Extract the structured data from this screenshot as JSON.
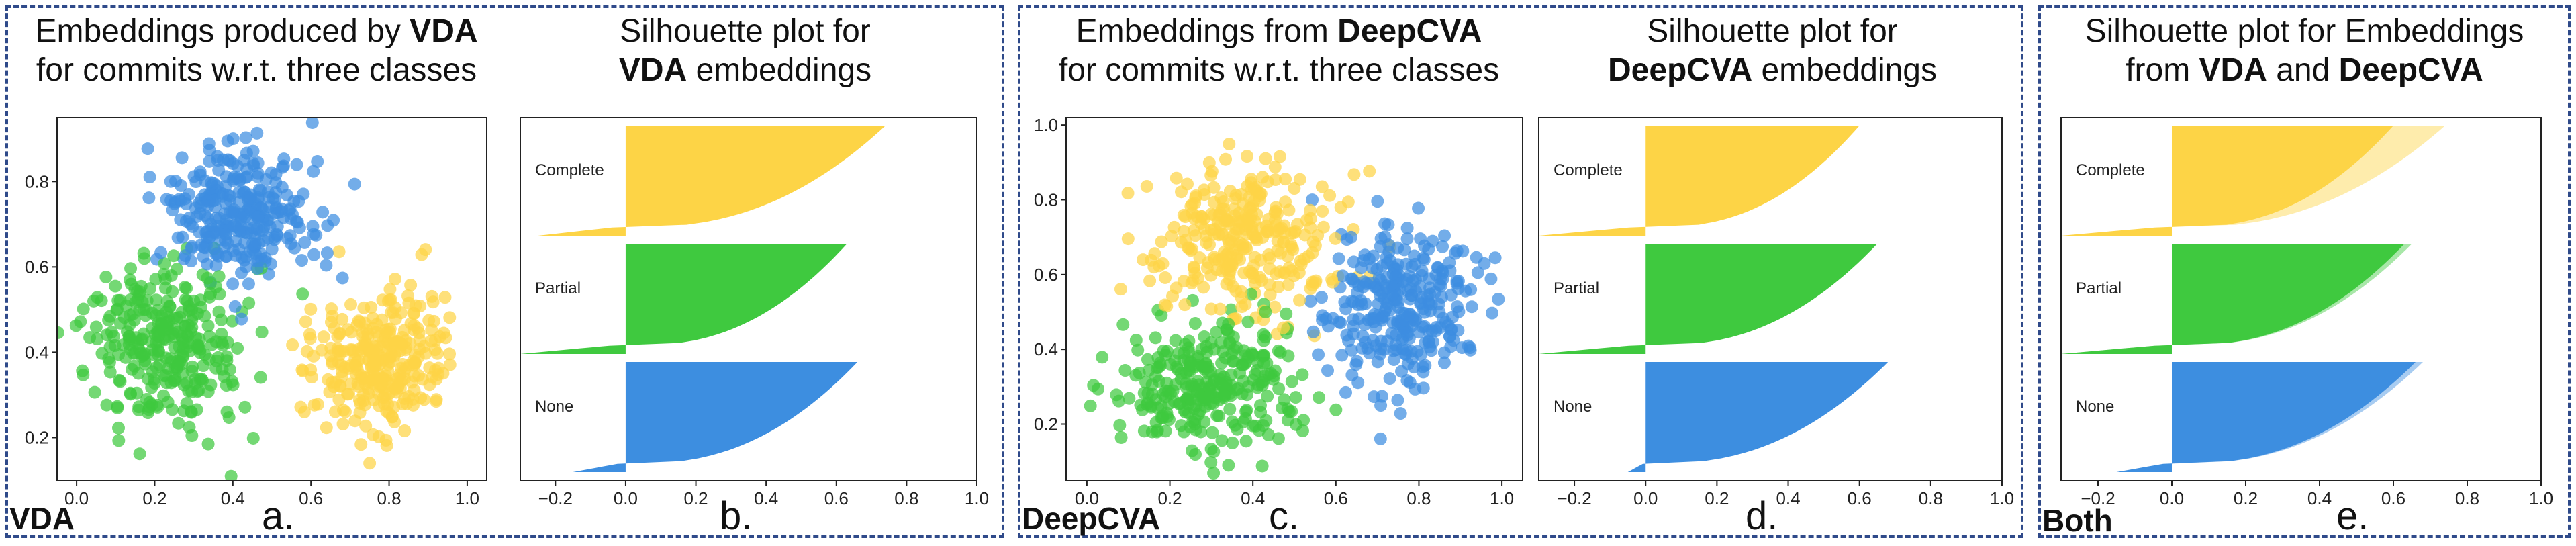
{
  "panels": {
    "vda": {
      "title_line1_pre": "Embeddings produced by ",
      "title_line1_bold": "VDA",
      "title_line2": "for commits w.r.t. three classes",
      "sil_title_line1": "Silhouette plot for",
      "sil_title_bold": "VDA",
      "sil_title_post": " embeddings",
      "tag": "VDA",
      "letter_scatter": "a.",
      "letter_sil": "b."
    },
    "deepcva": {
      "title_line1_pre": "Embeddings from ",
      "title_line1_bold": "DeepCVA",
      "title_line2": "for commits w.r.t. three classes",
      "sil_title_line1": "Silhouette plot for",
      "sil_title_bold": "DeepCVA",
      "sil_title_post": " embeddings",
      "tag": "DeepCVA",
      "letter_scatter": "c.",
      "letter_sil": "d."
    },
    "both": {
      "sil_title_line1": "Silhouette plot for Embeddings",
      "sil_title_line2_pre": "from ",
      "sil_title_line2_bold1": "VDA",
      "sil_title_line2_mid": " and ",
      "sil_title_line2_bold2": "DeepCVA",
      "tag": "Both",
      "letter_sil": "e."
    }
  },
  "colors": {
    "complete": "#fdd446",
    "partial": "#3fc93f",
    "none": "#3d8ee0",
    "frame": "#2f4a8a"
  },
  "chart_data": [
    {
      "type": "scatter",
      "id": "vda-scatter",
      "xlim": [
        -0.05,
        1.05
      ],
      "ylim": [
        0.1,
        0.95
      ],
      "xticks": [
        "0.0",
        "0.2",
        "0.4",
        "0.6",
        "0.8",
        "1.0"
      ],
      "yticks": [
        "0.2",
        "0.4",
        "0.6",
        "0.8"
      ],
      "series": [
        {
          "color": "#3d8ee0",
          "cx": 0.42,
          "cy": 0.72,
          "sx": 0.12,
          "sy": 0.09,
          "n": 300
        },
        {
          "color": "#3fc93f",
          "cx": 0.22,
          "cy": 0.42,
          "sx": 0.12,
          "sy": 0.11,
          "n": 300
        },
        {
          "color": "#fdd446",
          "cx": 0.78,
          "cy": 0.38,
          "sx": 0.1,
          "sy": 0.09,
          "n": 300
        }
      ]
    },
    {
      "type": "bar",
      "id": "vda-silhouette",
      "xlim": [
        -0.3,
        1.0
      ],
      "xticks": [
        "−0.2",
        "0.0",
        "0.2",
        "0.4",
        "0.6",
        "0.8",
        "1.0"
      ],
      "clusters": [
        {
          "label": "Complete",
          "color": "#fdd446",
          "min": -0.25,
          "max": 0.74
        },
        {
          "label": "Partial",
          "color": "#3fc93f",
          "min": -0.3,
          "max": 0.63
        },
        {
          "label": "None",
          "color": "#3d8ee0",
          "min": -0.15,
          "max": 0.66
        }
      ]
    },
    {
      "type": "scatter",
      "id": "deepcva-scatter",
      "xlim": [
        -0.05,
        1.05
      ],
      "ylim": [
        0.05,
        1.02
      ],
      "xticks": [
        "0.0",
        "0.2",
        "0.4",
        "0.6",
        "0.8",
        "1.0"
      ],
      "yticks": [
        "0.2",
        "0.4",
        "0.6",
        "0.8",
        "1.0"
      ],
      "series": [
        {
          "color": "#fdd446",
          "cx": 0.38,
          "cy": 0.7,
          "sx": 0.13,
          "sy": 0.13,
          "n": 300
        },
        {
          "color": "#3d8ee0",
          "cx": 0.76,
          "cy": 0.52,
          "sx": 0.1,
          "sy": 0.13,
          "n": 300
        },
        {
          "color": "#3fc93f",
          "cx": 0.3,
          "cy": 0.3,
          "sx": 0.13,
          "sy": 0.1,
          "n": 300
        }
      ]
    },
    {
      "type": "bar",
      "id": "deepcva-silhouette",
      "xlim": [
        -0.3,
        1.0
      ],
      "xticks": [
        "−0.2",
        "0.0",
        "0.2",
        "0.4",
        "0.6",
        "0.8",
        "1.0"
      ],
      "clusters": [
        {
          "label": "Complete",
          "color": "#fdd446",
          "min": -0.3,
          "max": 0.6
        },
        {
          "label": "Partial",
          "color": "#3fc93f",
          "min": -0.3,
          "max": 0.65
        },
        {
          "label": "None",
          "color": "#3d8ee0",
          "min": -0.05,
          "max": 0.68
        }
      ]
    },
    {
      "type": "bar",
      "id": "both-silhouette",
      "xlim": [
        -0.3,
        1.0
      ],
      "xticks": [
        "−0.2",
        "0.0",
        "0.2",
        "0.4",
        "0.6",
        "0.8",
        "1.0"
      ],
      "clusters": [
        {
          "label": "Complete",
          "color": "#fdd446",
          "min": -0.3,
          "max": 0.6,
          "min2": -0.25,
          "max2": 0.74
        },
        {
          "label": "Partial",
          "color": "#3fc93f",
          "min": -0.3,
          "max": 0.63,
          "min2": -0.3,
          "max2": 0.65
        },
        {
          "label": "None",
          "color": "#3d8ee0",
          "min": -0.15,
          "max": 0.66,
          "min2": -0.05,
          "max2": 0.68
        }
      ]
    }
  ]
}
